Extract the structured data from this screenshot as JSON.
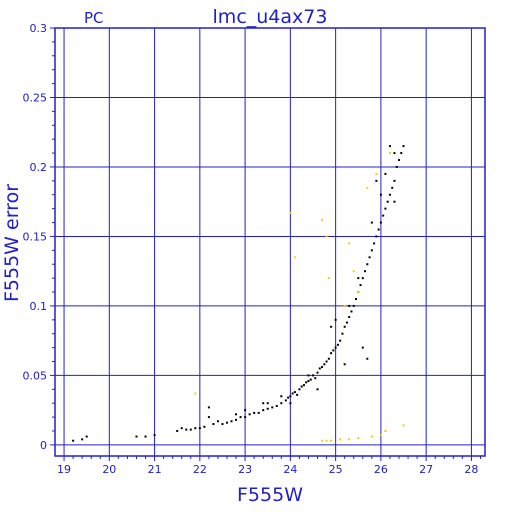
{
  "chart_data": {
    "type": "scatter",
    "panel_label": "PC",
    "title": "lmc_u4ax73",
    "xlabel": "F555W",
    "ylabel": "F555W error",
    "xlim": [
      18.8,
      28.3
    ],
    "ylim": [
      -0.008,
      0.3
    ],
    "x_ticks": [
      "19",
      "20",
      "21",
      "22",
      "23",
      "24",
      "25",
      "26",
      "27",
      "28"
    ],
    "y_ticks": [
      "0",
      "0.05",
      "0.1",
      "0.15",
      "0.2",
      "0.25",
      "0.3"
    ],
    "grid": true,
    "colors": {
      "axis": "#2020c8",
      "grid": "#2020c8",
      "main": "#000000",
      "secondary": "#f0d000"
    },
    "series": [
      {
        "color": "#000000",
        "points": [
          [
            19.2,
            0.003
          ],
          [
            19.4,
            0.004
          ],
          [
            19.5,
            0.006
          ],
          [
            20.6,
            0.006
          ],
          [
            20.8,
            0.006
          ],
          [
            21.0,
            0.007
          ],
          [
            21.5,
            0.01
          ],
          [
            21.6,
            0.012
          ],
          [
            21.7,
            0.011
          ],
          [
            21.8,
            0.011
          ],
          [
            21.9,
            0.012
          ],
          [
            22.0,
            0.012
          ],
          [
            22.1,
            0.013
          ],
          [
            22.2,
            0.02
          ],
          [
            22.2,
            0.027
          ],
          [
            22.3,
            0.015
          ],
          [
            22.4,
            0.017
          ],
          [
            22.5,
            0.015
          ],
          [
            22.6,
            0.016
          ],
          [
            22.7,
            0.017
          ],
          [
            22.8,
            0.018
          ],
          [
            22.9,
            0.02
          ],
          [
            23.0,
            0.025
          ],
          [
            23.0,
            0.02
          ],
          [
            23.1,
            0.022
          ],
          [
            23.2,
            0.023
          ],
          [
            23.3,
            0.023
          ],
          [
            23.4,
            0.025
          ],
          [
            23.4,
            0.03
          ],
          [
            23.5,
            0.026
          ],
          [
            23.6,
            0.027
          ],
          [
            23.7,
            0.028
          ],
          [
            23.8,
            0.03
          ],
          [
            23.8,
            0.035
          ],
          [
            23.9,
            0.032
          ],
          [
            23.95,
            0.034
          ],
          [
            24.0,
            0.035
          ],
          [
            24.0,
            0.03
          ],
          [
            24.05,
            0.037
          ],
          [
            24.1,
            0.038
          ],
          [
            24.15,
            0.036
          ],
          [
            24.2,
            0.04
          ],
          [
            24.25,
            0.042
          ],
          [
            24.3,
            0.043
          ],
          [
            24.35,
            0.045
          ],
          [
            24.4,
            0.046
          ],
          [
            24.4,
            0.05
          ],
          [
            24.45,
            0.047
          ],
          [
            24.5,
            0.05
          ],
          [
            24.55,
            0.048
          ],
          [
            24.6,
            0.052
          ],
          [
            24.65,
            0.055
          ],
          [
            24.7,
            0.056
          ],
          [
            24.75,
            0.058
          ],
          [
            24.8,
            0.06
          ],
          [
            24.85,
            0.062
          ],
          [
            24.9,
            0.066
          ],
          [
            24.95,
            0.068
          ],
          [
            25.0,
            0.07
          ],
          [
            25.05,
            0.072
          ],
          [
            25.1,
            0.075
          ],
          [
            25.15,
            0.08
          ],
          [
            25.2,
            0.085
          ],
          [
            25.25,
            0.088
          ],
          [
            25.3,
            0.092
          ],
          [
            25.35,
            0.096
          ],
          [
            25.4,
            0.1
          ],
          [
            25.45,
            0.105
          ],
          [
            25.5,
            0.11
          ],
          [
            25.55,
            0.115
          ],
          [
            25.6,
            0.12
          ],
          [
            25.65,
            0.125
          ],
          [
            25.7,
            0.13
          ],
          [
            25.75,
            0.135
          ],
          [
            25.8,
            0.14
          ],
          [
            25.85,
            0.145
          ],
          [
            25.9,
            0.15
          ],
          [
            25.95,
            0.155
          ],
          [
            26.0,
            0.16
          ],
          [
            26.05,
            0.165
          ],
          [
            26.1,
            0.17
          ],
          [
            26.15,
            0.175
          ],
          [
            26.2,
            0.18
          ],
          [
            26.25,
            0.185
          ],
          [
            26.3,
            0.19
          ],
          [
            26.35,
            0.2
          ],
          [
            26.4,
            0.205
          ],
          [
            26.45,
            0.21
          ],
          [
            26.5,
            0.215
          ],
          [
            26.3,
            0.21
          ],
          [
            26.2,
            0.215
          ],
          [
            25.7,
            0.062
          ],
          [
            25.6,
            0.07
          ],
          [
            25.2,
            0.058
          ],
          [
            24.6,
            0.04
          ],
          [
            23.5,
            0.03
          ],
          [
            22.8,
            0.022
          ],
          [
            24.9,
            0.085
          ],
          [
            25.0,
            0.09
          ],
          [
            25.8,
            0.16
          ],
          [
            26.0,
            0.18
          ],
          [
            25.9,
            0.19
          ],
          [
            26.1,
            0.195
          ],
          [
            26.3,
            0.175
          ],
          [
            25.5,
            0.12
          ],
          [
            25.3,
            0.1
          ]
        ]
      },
      {
        "color": "#f0d000",
        "points": [
          [
            21.9,
            0.037
          ],
          [
            24.0,
            0.167
          ],
          [
            24.1,
            0.135
          ],
          [
            24.7,
            0.162
          ],
          [
            24.8,
            0.15
          ],
          [
            24.85,
            0.12
          ],
          [
            24.7,
            0.003
          ],
          [
            24.8,
            0.003
          ],
          [
            24.9,
            0.003
          ],
          [
            25.1,
            0.004
          ],
          [
            25.3,
            0.004
          ],
          [
            25.5,
            0.005
          ],
          [
            25.8,
            0.006
          ],
          [
            26.0,
            0.007
          ],
          [
            26.1,
            0.01
          ],
          [
            26.5,
            0.014
          ],
          [
            25.3,
            0.145
          ],
          [
            25.4,
            0.125
          ],
          [
            25.9,
            0.195
          ],
          [
            26.2,
            0.21
          ],
          [
            25.7,
            0.185
          ],
          [
            25.2,
            0.1
          ],
          [
            25.5,
            0.11
          ]
        ]
      }
    ]
  }
}
